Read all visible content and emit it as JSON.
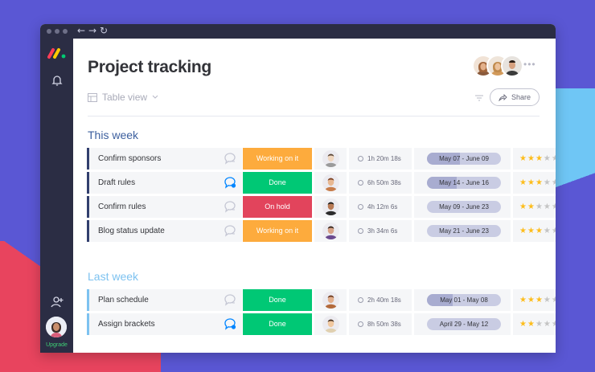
{
  "page": {
    "title": "Project tracking",
    "view_label": "Table view",
    "share_label": "Share",
    "more_glyph": "•••",
    "upgrade_label": "Upgrade"
  },
  "colors": {
    "working_on_it": "#fdab3d",
    "done": "#00c875",
    "on_hold": "#e2445c",
    "this_week_bar": "#323f6e",
    "last_week_bar": "#7dc2f0",
    "star_on": "#fdbd1c",
    "star_off": "#c4c4c4"
  },
  "groups": [
    {
      "title": "This week",
      "rows": [
        {
          "name": "Confirm sponsors",
          "status": "Working on it",
          "status_key": "working_on_it",
          "chat_active": false,
          "time": "1h 20m 18s",
          "timeline": "May 07 - June 09",
          "timeline_progress": 0.45,
          "rating": 3,
          "rating_text": "★★★★★"
        },
        {
          "name": "Draft rules",
          "status": "Done",
          "status_key": "done",
          "chat_active": true,
          "time": "6h 50m 38s",
          "timeline": "May 14 - June 16",
          "timeline_progress": 0.4,
          "rating": 3,
          "rating_text": "★★★★★"
        },
        {
          "name": "Confirm rules",
          "status": "On hold",
          "status_key": "on_hold",
          "chat_active": false,
          "time": "4h 12m 6s",
          "timeline": "May 09 - June 23",
          "timeline_progress": 0.0,
          "rating": 2,
          "rating_text": "★★★★★"
        },
        {
          "name": "Blog status update",
          "status": "Working on it",
          "status_key": "working_on_it",
          "chat_active": false,
          "time": "3h 34m 6s",
          "timeline": "May 21 - June 23",
          "timeline_progress": 0.0,
          "rating": 3,
          "rating_text": "★★★★★"
        }
      ]
    },
    {
      "title": "Last week",
      "rows": [
        {
          "name": "Plan schedule",
          "status": "Done",
          "status_key": "done",
          "chat_active": false,
          "time": "2h 40m 18s",
          "timeline": "May 01 - May 08",
          "timeline_progress": 0.35,
          "rating": 3,
          "rating_text": "★★★★★"
        },
        {
          "name": "Assign brackets",
          "status": "Done",
          "status_key": "done",
          "chat_active": true,
          "time": "8h 50m 38s",
          "timeline": "April 29 - May 12",
          "timeline_progress": 0.0,
          "rating": 2,
          "rating_text": "★★★★★"
        }
      ]
    }
  ],
  "icons": [
    "monday-logo",
    "bell-icon",
    "add-user-icon",
    "search-icon",
    "back-arrow-icon",
    "forward-arrow-icon",
    "refresh-icon",
    "table-icon",
    "chevron-down-icon",
    "filter-icon",
    "share-icon",
    "chat-icon",
    "clock-icon",
    "star-icon"
  ]
}
